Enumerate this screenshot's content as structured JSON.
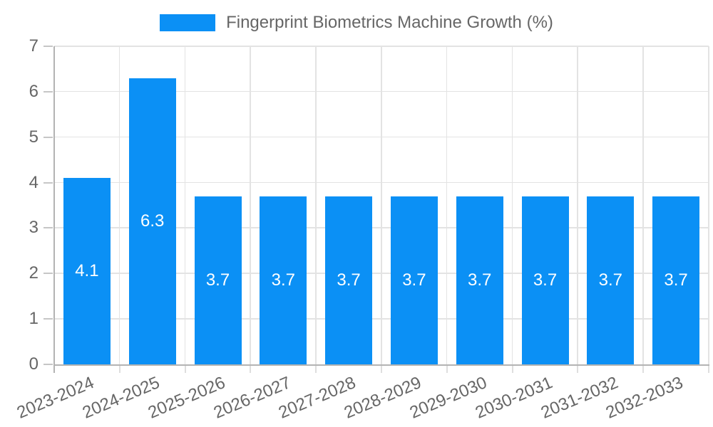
{
  "legend": {
    "label": "Fingerprint Biometrics Machine Growth (%)",
    "swatch_color": "#0b90f5"
  },
  "chart_data": {
    "type": "bar",
    "title": "Fingerprint Biometrics Machine Growth (%)",
    "categories": [
      "2023-2024",
      "2024-2025",
      "2025-2026",
      "2026-2027",
      "2027-2028",
      "2028-2029",
      "2029-2030",
      "2030-2031",
      "2031-2032",
      "2032-2033"
    ],
    "series": [
      {
        "name": "Fingerprint Biometrics Machine Growth (%)",
        "values": [
          4.1,
          6.3,
          3.7,
          3.7,
          3.7,
          3.7,
          3.7,
          3.7,
          3.7,
          3.7
        ]
      }
    ],
    "value_labels": [
      "4.1",
      "6.3",
      "3.7",
      "3.7",
      "3.7",
      "3.7",
      "3.7",
      "3.7",
      "3.7",
      "3.7"
    ],
    "xlabel": "",
    "ylabel": "",
    "ylim": [
      0,
      7
    ],
    "yticks": [
      "0",
      "1",
      "2",
      "3",
      "4",
      "5",
      "6",
      "7"
    ],
    "grid": true,
    "legend_position": "top",
    "x_tick_rotation_deg": -23,
    "colors": {
      "bar": "#0b90f5",
      "grid": "#e3e3e3",
      "axis": "#b3b3b3",
      "y_tick_mark": "#c6c6c6",
      "x_tick_mark": "#dedede",
      "tick_label": "#666666",
      "value_label": "#ffffff",
      "background": "#ffffff"
    }
  }
}
